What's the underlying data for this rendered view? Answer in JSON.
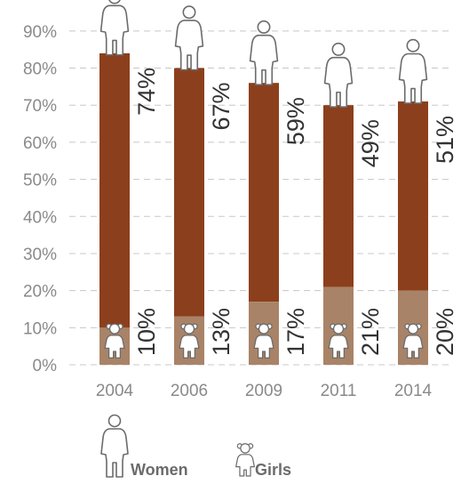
{
  "chart_data": {
    "type": "bar",
    "stacked": true,
    "categories": [
      "2004",
      "2006",
      "2009",
      "2011",
      "2014"
    ],
    "series": [
      {
        "name": "Girls",
        "values": [
          10,
          13,
          17,
          21,
          20
        ],
        "labels": [
          "10%",
          "13%",
          "17%",
          "21%",
          "20%"
        ],
        "color": "#a98367"
      },
      {
        "name": "Women",
        "values": [
          74,
          67,
          59,
          49,
          51
        ],
        "labels": [
          "74%",
          "67%",
          "59%",
          "49%",
          "51%"
        ],
        "color": "#8c3f1c"
      }
    ],
    "yticks": [
      "0%",
      "10%",
      "20%",
      "30%",
      "40%",
      "50%",
      "60%",
      "70%",
      "80%",
      "90%"
    ],
    "ylim": [
      0,
      95
    ],
    "grid": true,
    "legend": [
      {
        "name": "Women",
        "icon": "woman-icon"
      },
      {
        "name": "Girls",
        "icon": "girl-icon"
      }
    ],
    "colors": {
      "grid": "#c8c8c8",
      "icon_stroke": "#6b6b6b",
      "icon_fill": "#ffffff"
    }
  }
}
